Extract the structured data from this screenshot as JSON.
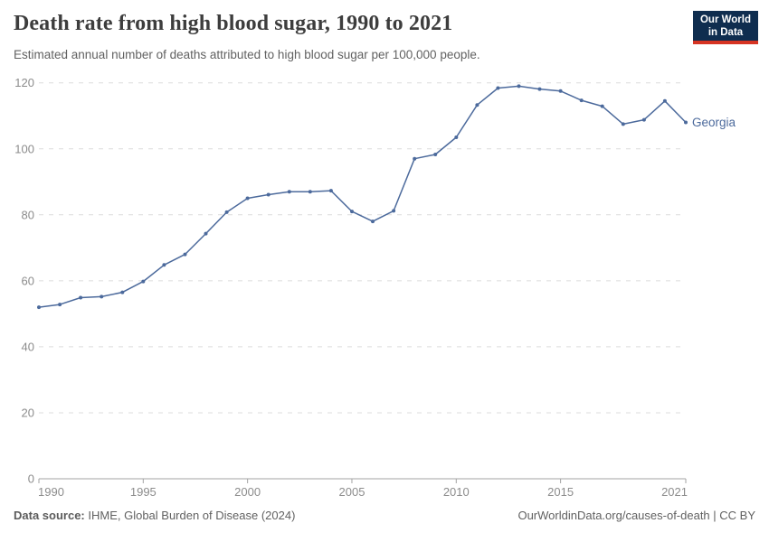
{
  "header": {
    "title": "Death rate from high blood sugar, 1990 to 2021",
    "subtitle": "Estimated annual number of deaths attributed to high blood sugar per 100,000 people.",
    "logo": {
      "line1": "Our World",
      "line2": "in Data",
      "bg_color": "#0f2d4f",
      "accent_color": "#d63423"
    }
  },
  "chart_data": {
    "type": "line",
    "title": "Death rate from high blood sugar, 1990 to 2021",
    "xlabel": "",
    "ylabel": "",
    "xlim": [
      1990,
      2021
    ],
    "ylim": [
      0,
      120
    ],
    "x_ticks": [
      1990,
      1995,
      2000,
      2005,
      2010,
      2015,
      2021
    ],
    "y_ticks": [
      0,
      20,
      40,
      60,
      80,
      100,
      120
    ],
    "grid": "horizontal-dashed",
    "legend_position": "end-of-line-label",
    "x": [
      1990,
      1991,
      1992,
      1993,
      1994,
      1995,
      1996,
      1997,
      1998,
      1999,
      2000,
      2001,
      2002,
      2003,
      2004,
      2005,
      2006,
      2007,
      2008,
      2009,
      2010,
      2011,
      2012,
      2013,
      2014,
      2015,
      2016,
      2017,
      2018,
      2019,
      2020,
      2021
    ],
    "series": [
      {
        "name": "Georgia",
        "color": "#4c6a9c",
        "values": [
          52,
          52.8,
          54.9,
          55.2,
          56.5,
          59.8,
          64.8,
          68,
          74.3,
          80.8,
          85,
          86.1,
          87,
          87,
          87.3,
          81,
          78,
          81.2,
          97,
          98.3,
          103.5,
          113.3,
          118.4,
          119,
          118.1,
          117.5,
          114.7,
          112.9,
          107.5,
          108.8,
          114.5,
          108
        ]
      }
    ]
  },
  "footer": {
    "source_label": "Data source:",
    "source_text": " IHME, Global Burden of Disease (2024)",
    "credit": "OurWorldinData.org/causes-of-death | CC BY"
  },
  "colors": {
    "line": "#4c6a9c",
    "grid": "#dcdcdc",
    "axis": "#a3a3a3",
    "tick_label": "#8c8c8c",
    "title": "#3d3d3d",
    "subtitle": "#616161"
  }
}
